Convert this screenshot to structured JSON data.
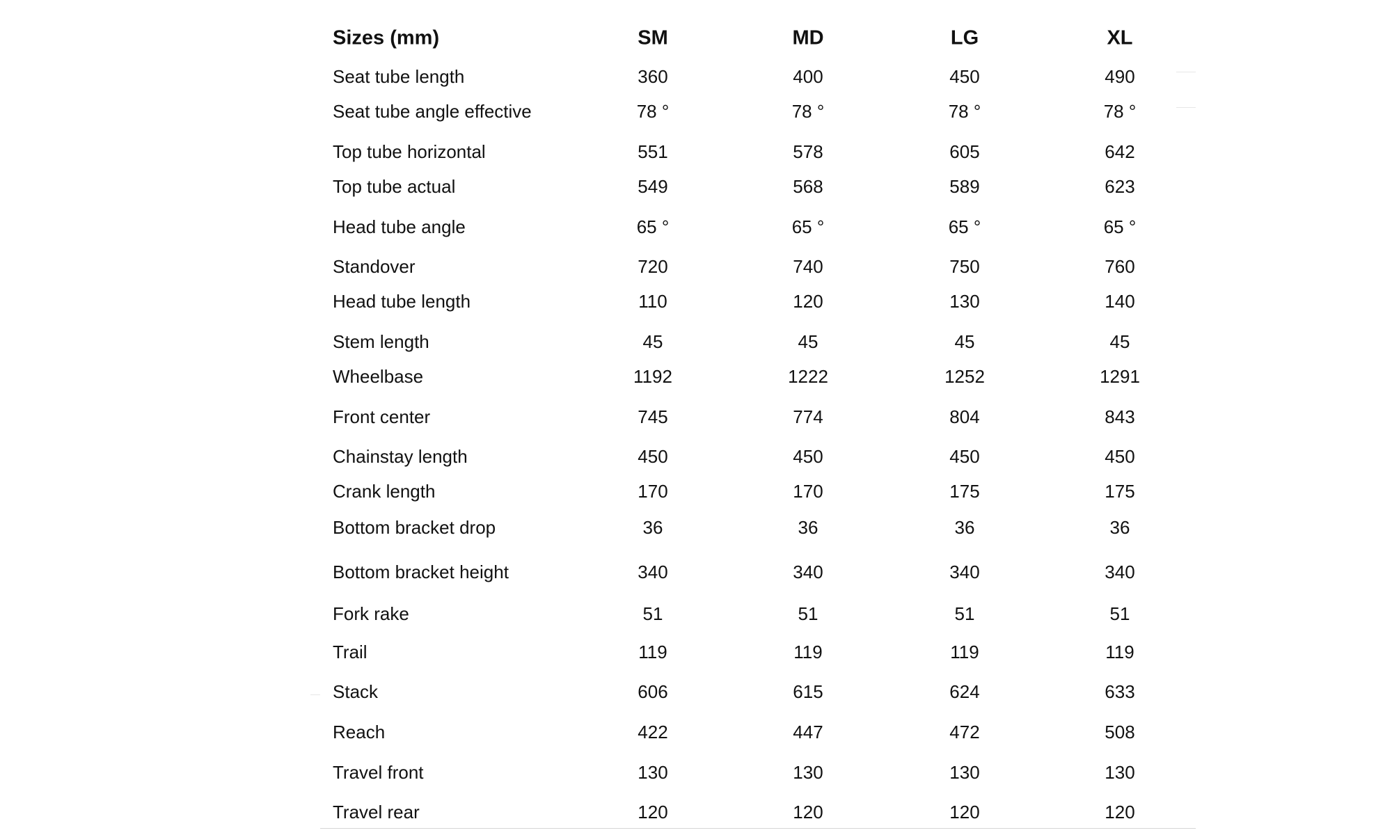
{
  "table": {
    "header": [
      "Sizes (mm)",
      "SM",
      "MD",
      "LG",
      "XL"
    ],
    "rows": [
      {
        "label": "Seat tube length",
        "cells": [
          "360",
          "400",
          "450",
          "490"
        ]
      },
      {
        "label": "Seat tube angle effective",
        "cells": [
          "78 °",
          "78 °",
          "78 °",
          "78 °"
        ]
      },
      {
        "label": "Top tube horizontal",
        "cells": [
          "551",
          "578",
          "605",
          "642"
        ]
      },
      {
        "label": "Top tube actual",
        "cells": [
          "549",
          "568",
          "589",
          "623"
        ]
      },
      {
        "label": "Head tube angle",
        "cells": [
          "65 °",
          "65 °",
          "65 °",
          "65 °"
        ]
      },
      {
        "label": "Standover",
        "cells": [
          "720",
          "740",
          "750",
          "760"
        ]
      },
      {
        "label": "Head tube length",
        "cells": [
          "110",
          "120",
          "130",
          "140"
        ]
      },
      {
        "label": "Stem length",
        "cells": [
          "45",
          "45",
          "45",
          "45"
        ]
      },
      {
        "label": "Wheelbase",
        "cells": [
          "1192",
          "1222",
          "1252",
          "1291"
        ]
      },
      {
        "label": "Front center",
        "cells": [
          "745",
          "774",
          "804",
          "843"
        ]
      },
      {
        "label": "Chainstay length",
        "cells": [
          "450",
          "450",
          "450",
          "450"
        ]
      },
      {
        "label": "Crank length",
        "cells": [
          "170",
          "170",
          "175",
          "175"
        ]
      },
      {
        "label": "Bottom bracket drop",
        "cells": [
          "36",
          "36",
          "36",
          "36"
        ]
      },
      {
        "label": "Bottom bracket height",
        "cells": [
          "340",
          "340",
          "340",
          "340"
        ]
      },
      {
        "label": "Fork rake",
        "cells": [
          "51",
          "51",
          "51",
          "51"
        ]
      },
      {
        "label": "Trail",
        "cells": [
          "119",
          "119",
          "119",
          "119"
        ]
      },
      {
        "label": "Stack",
        "cells": [
          "606",
          "615",
          "624",
          "633"
        ]
      },
      {
        "label": "Reach",
        "cells": [
          "422",
          "447",
          "472",
          "508"
        ]
      },
      {
        "label": "Travel front",
        "cells": [
          "130",
          "130",
          "130",
          "130"
        ]
      },
      {
        "label": "Travel rear",
        "cells": [
          "120",
          "120",
          "120",
          "120"
        ]
      }
    ]
  }
}
